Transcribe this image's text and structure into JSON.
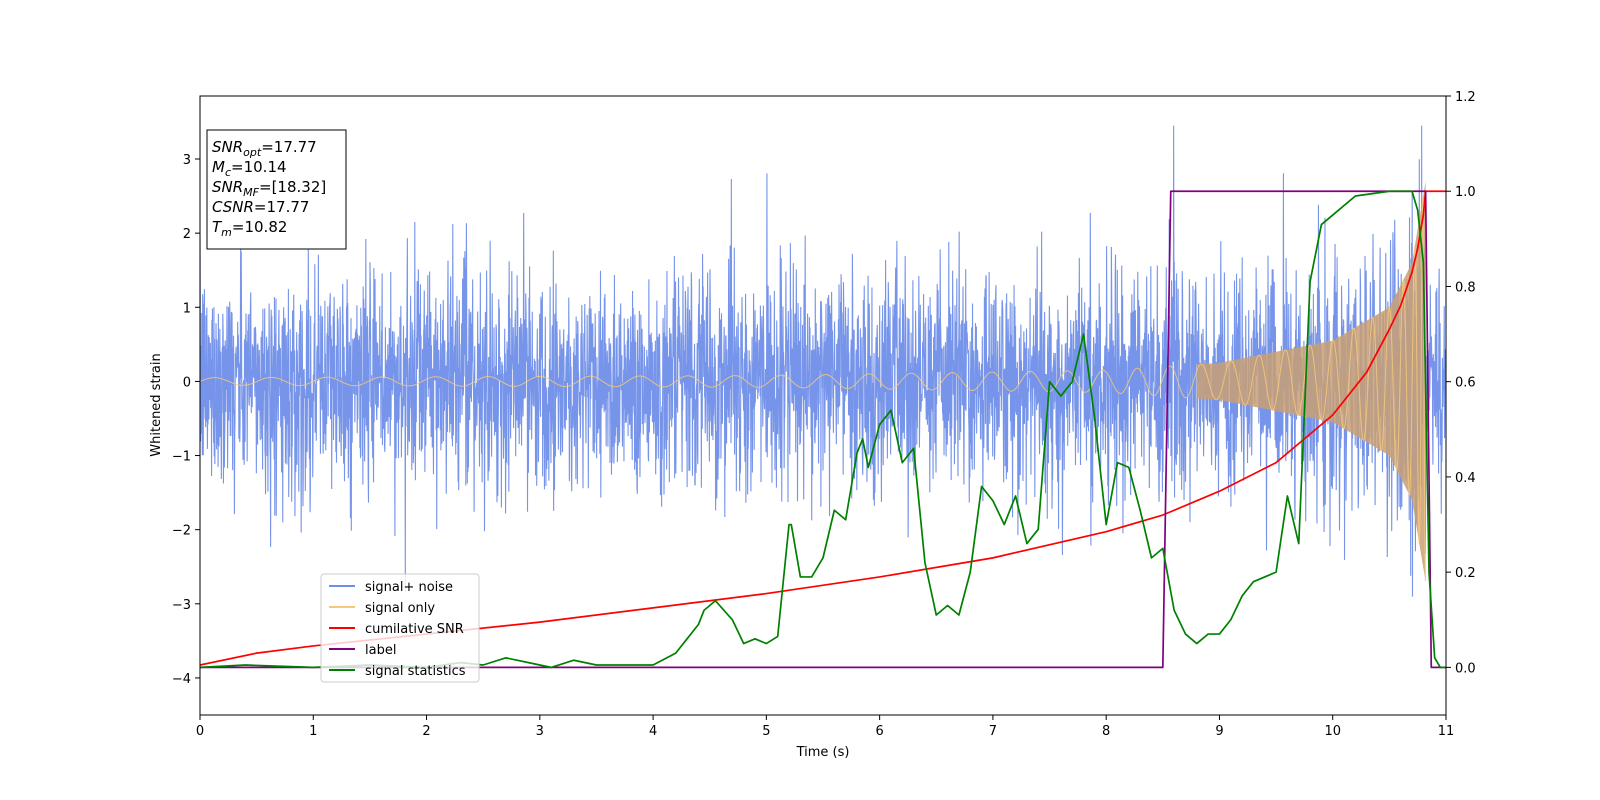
{
  "chart_data": {
    "type": "line",
    "xlabel": "Time (s)",
    "ylabel": "Whitened strain",
    "xlim": [
      0,
      11
    ],
    "ylim": [
      -4.5,
      3.85
    ],
    "y2lim": [
      -0.1,
      1.2
    ],
    "grid": false,
    "x_ticks": [
      "0",
      "1",
      "2",
      "3",
      "4",
      "5",
      "6",
      "7",
      "8",
      "9",
      "10",
      "11"
    ],
    "y_ticks": [
      "3",
      "2",
      "1",
      "0",
      "−1",
      "−2",
      "−3",
      "−4"
    ],
    "y2_ticks": [
      "1.2",
      "1.0",
      "0.8",
      "0.6",
      "0.4",
      "0.2",
      "0.0"
    ],
    "legend": {
      "placement": "lower-left",
      "entries": [
        {
          "label": "signal+ noise",
          "color": "#6f8ee8"
        },
        {
          "label": "signal only",
          "color": "#f7c87a"
        },
        {
          "label": "cumilative SNR",
          "color": "#ff0000"
        },
        {
          "label": "label",
          "color": "#800080"
        },
        {
          "label": "signal statistics",
          "color": "#008000"
        }
      ]
    },
    "info_box": {
      "placement": "top-left",
      "lines": [
        {
          "sym": "SNR",
          "sub": "opt",
          "val": "=17.77"
        },
        {
          "sym": "M",
          "sub": "c",
          "val": "=10.14"
        },
        {
          "sym": "SNR",
          "sub": "MF",
          "val": "=[18.32]"
        },
        {
          "sym": "CSNR",
          "sub": "",
          "val": "=17.77"
        },
        {
          "sym": "T",
          "sub": "m",
          "val": "=10.82"
        }
      ]
    },
    "series": [
      {
        "name": "signal+ noise",
        "axis": "left",
        "color": "#6f8ee8",
        "noise_envelope": {
          "typical": 1.3,
          "max": 3.45,
          "min": -4.15,
          "t_start": 0,
          "t_end": 11
        }
      },
      {
        "name": "signal only",
        "axis": "left",
        "color": "#f7c87a",
        "chirp": {
          "t_start": 0,
          "t_merge": 10.82,
          "amp_envelope": [
            [
              0,
              0.05
            ],
            [
              5,
              0.08
            ],
            [
              8,
              0.15
            ],
            [
              9,
              0.25
            ],
            [
              10,
              0.55
            ],
            [
              10.5,
              1.0
            ],
            [
              10.7,
              1.6
            ],
            [
              10.82,
              2.7
            ]
          ]
        }
      },
      {
        "name": "cumilative SNR",
        "axis": "right",
        "color": "#ff0000",
        "x": [
          0,
          0.5,
          1,
          2,
          3,
          4,
          5,
          6,
          7,
          8,
          8.5,
          9,
          9.5,
          10,
          10.3,
          10.5,
          10.6,
          10.7,
          10.75,
          10.8,
          10.82,
          11
        ],
        "y": [
          0.005,
          0.03,
          0.045,
          0.07,
          0.095,
          0.125,
          0.155,
          0.19,
          0.23,
          0.285,
          0.32,
          0.37,
          0.43,
          0.53,
          0.62,
          0.71,
          0.76,
          0.83,
          0.88,
          0.95,
          1.0,
          1.0
        ]
      },
      {
        "name": "label",
        "axis": "right",
        "color": "#800080",
        "x": [
          0,
          8.5,
          8.57,
          10.82,
          10.87,
          11
        ],
        "y": [
          0.0,
          0.0,
          1.0,
          1.0,
          0.0,
          0.0
        ]
      },
      {
        "name": "signal statistics",
        "axis": "right",
        "color": "#008000",
        "x": [
          0,
          0.4,
          1,
          1.5,
          2,
          2.3,
          2.5,
          2.7,
          2.9,
          3.1,
          3.3,
          3.5,
          3.8,
          4.0,
          4.2,
          4.3,
          4.4,
          4.45,
          4.5,
          4.55,
          4.7,
          4.8,
          4.9,
          5.0,
          5.1,
          5.2,
          5.22,
          5.3,
          5.4,
          5.5,
          5.6,
          5.7,
          5.8,
          5.85,
          5.9,
          6.0,
          6.1,
          6.2,
          6.3,
          6.4,
          6.5,
          6.6,
          6.7,
          6.8,
          6.9,
          7.0,
          7.1,
          7.2,
          7.3,
          7.4,
          7.5,
          7.6,
          7.7,
          7.8,
          7.9,
          8.0,
          8.1,
          8.2,
          8.3,
          8.4,
          8.5,
          8.6,
          8.7,
          8.8,
          8.9,
          9.0,
          9.1,
          9.2,
          9.3,
          9.4,
          9.5,
          9.6,
          9.7,
          9.8,
          9.9,
          10.0,
          10.2,
          10.5,
          10.7,
          10.75,
          10.8,
          10.85,
          10.9,
          10.95,
          11.0
        ],
        "y": [
          0.0,
          0.005,
          0.0,
          0.005,
          0.0,
          0.01,
          0.005,
          0.02,
          0.01,
          0.0,
          0.015,
          0.005,
          0.005,
          0.005,
          0.03,
          0.06,
          0.09,
          0.12,
          0.13,
          0.14,
          0.1,
          0.05,
          0.06,
          0.05,
          0.065,
          0.3,
          0.3,
          0.19,
          0.19,
          0.23,
          0.33,
          0.31,
          0.45,
          0.48,
          0.42,
          0.51,
          0.54,
          0.43,
          0.46,
          0.22,
          0.11,
          0.13,
          0.11,
          0.2,
          0.38,
          0.35,
          0.3,
          0.36,
          0.26,
          0.29,
          0.6,
          0.57,
          0.6,
          0.7,
          0.52,
          0.3,
          0.43,
          0.42,
          0.33,
          0.23,
          0.25,
          0.12,
          0.07,
          0.05,
          0.07,
          0.07,
          0.1,
          0.15,
          0.18,
          0.19,
          0.2,
          0.36,
          0.26,
          0.81,
          0.93,
          0.95,
          0.99,
          1.0,
          1.0,
          0.96,
          0.85,
          0.2,
          0.02,
          0.0,
          0.0
        ]
      }
    ]
  }
}
